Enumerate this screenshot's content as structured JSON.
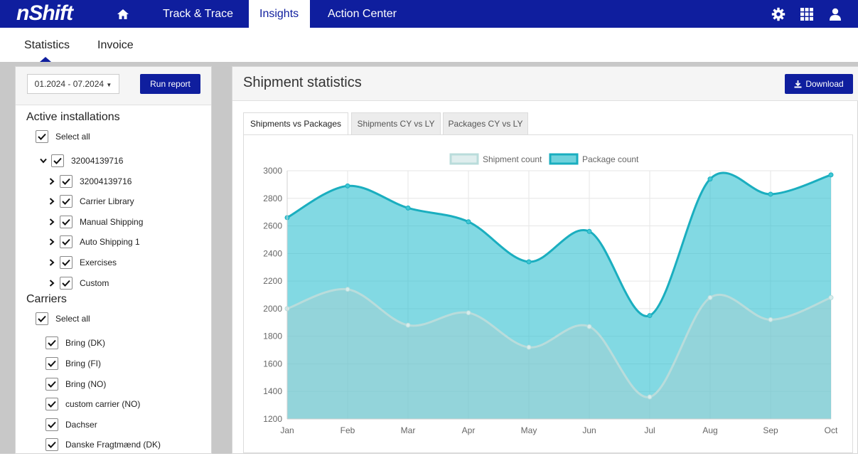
{
  "topnav": {
    "logo_text": "nShift",
    "home_icon": "home-icon",
    "items": [
      {
        "label": "Track & Trace"
      },
      {
        "label": "Insights"
      },
      {
        "label": "Action Center"
      }
    ],
    "right_icons": [
      "gear-icon",
      "apps-grid-icon",
      "user-icon"
    ]
  },
  "subnav": {
    "tabs": [
      {
        "label": "Statistics"
      },
      {
        "label": "Invoice"
      }
    ]
  },
  "filters": {
    "date_range": "01.2024 - 07.2024",
    "run_label": "Run report",
    "installations_title": "Active installations",
    "select_all_label": "Select all",
    "installation_root": "32004139716",
    "installation_children": [
      {
        "label": "32004139716"
      },
      {
        "label": "Carrier Library"
      },
      {
        "label": "Manual Shipping"
      },
      {
        "label": "Auto Shipping 1"
      },
      {
        "label": "Exercises"
      },
      {
        "label": "Custom"
      }
    ],
    "carriers_title": "Carriers",
    "carriers_select_all": "Select all",
    "carriers": [
      {
        "label": "Bring (DK)"
      },
      {
        "label": "Bring (FI)"
      },
      {
        "label": "Bring (NO)"
      },
      {
        "label": "custom carrier (NO)"
      },
      {
        "label": "Dachser"
      },
      {
        "label": "Danske Fragtmænd (DK)"
      }
    ]
  },
  "main": {
    "title": "Shipment statistics",
    "download_label": "Download",
    "tabs": [
      {
        "label": "Shipments vs Packages"
      },
      {
        "label": "Shipments CY vs LY"
      },
      {
        "label": "Packages CY vs LY"
      }
    ]
  },
  "chart_data": {
    "type": "area",
    "categories": [
      "Jan",
      "Feb",
      "Mar",
      "Apr",
      "May",
      "Jun",
      "Jul",
      "Aug",
      "Sep",
      "Oct"
    ],
    "series": [
      {
        "name": "Shipment count",
        "color": "#c9e7e6",
        "values": [
          2000,
          2140,
          1880,
          1970,
          1720,
          1870,
          1360,
          2080,
          1920,
          2080
        ]
      },
      {
        "name": "Package count",
        "color": "#19b3c6",
        "values": [
          2660,
          2890,
          2730,
          2630,
          2340,
          2560,
          1950,
          2940,
          2830,
          2970
        ]
      }
    ],
    "yticks": [
      1200,
      1400,
      1600,
      1800,
      2000,
      2200,
      2400,
      2600,
      2800,
      3000
    ],
    "ylim": [
      1200,
      3000
    ],
    "grid": true,
    "legend": "top-center"
  }
}
